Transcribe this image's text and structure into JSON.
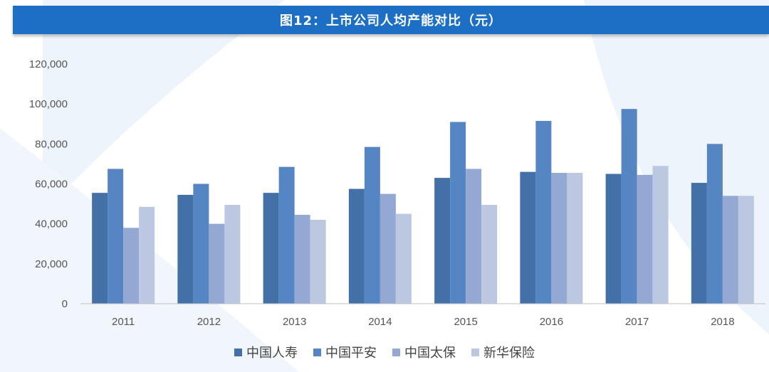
{
  "title": "图12：上市公司人均产能对比（元）",
  "chart_data": {
    "type": "bar",
    "categories": [
      "2011",
      "2012",
      "2013",
      "2014",
      "2015",
      "2016",
      "2017",
      "2018"
    ],
    "series": [
      {
        "name": "中国人寿",
        "color": "#4470a8",
        "values": [
          55500,
          54500,
          55500,
          57500,
          63000,
          66000,
          65000,
          60500
        ]
      },
      {
        "name": "中国平安",
        "color": "#5585c2",
        "values": [
          67500,
          60000,
          68500,
          78500,
          91000,
          91500,
          97500,
          80000
        ]
      },
      {
        "name": "中国太保",
        "color": "#93a9d4",
        "values": [
          38000,
          40000,
          44500,
          55000,
          67500,
          65500,
          64500,
          54000
        ]
      },
      {
        "name": "新华保险",
        "color": "#bcc8e2",
        "values": [
          48500,
          49500,
          42000,
          45000,
          49500,
          65500,
          69000,
          54000
        ]
      }
    ],
    "y_ticks": [
      "0",
      "20,000",
      "40,000",
      "60,000",
      "80,000",
      "100,000",
      "120,000"
    ],
    "ylim": [
      0,
      120000
    ],
    "grid": false,
    "legend_position": "bottom"
  }
}
